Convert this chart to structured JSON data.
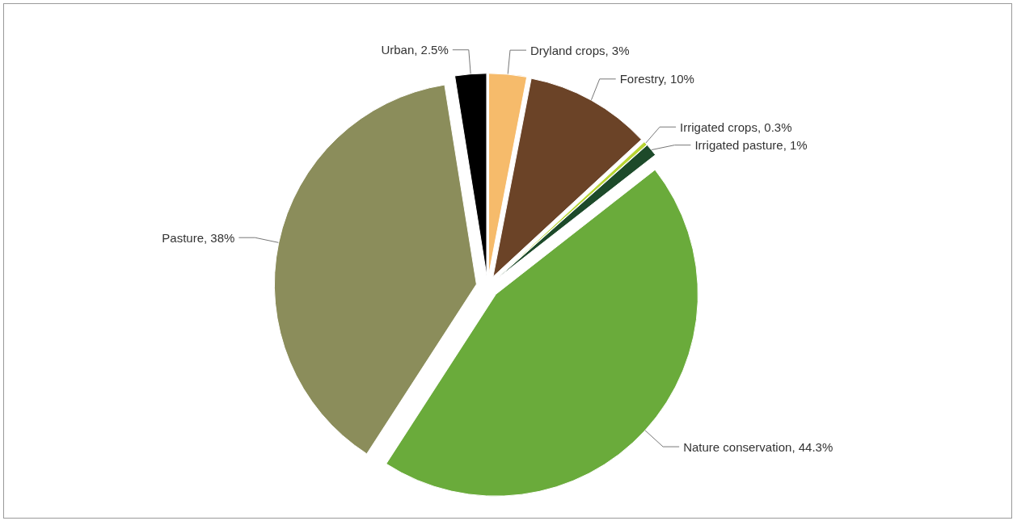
{
  "chart_data": {
    "type": "pie",
    "categories": [
      "Dryland crops",
      "Forestry",
      "Irrigated crops",
      "Irrigated pasture",
      "Nature conservation",
      "Pasture",
      "Urban"
    ],
    "values": [
      3,
      10,
      0.3,
      1,
      44.3,
      38,
      2.5
    ],
    "colors": [
      "#f6bb6b",
      "#6b4327",
      "#b8d432",
      "#1d4a2a",
      "#6aab3b",
      "#8b8d5b",
      "#000000"
    ],
    "value_labels": [
      "3%",
      "10%",
      "0.3%",
      "1%",
      "44.3%",
      "38%",
      "2.5%"
    ],
    "legend": false
  }
}
